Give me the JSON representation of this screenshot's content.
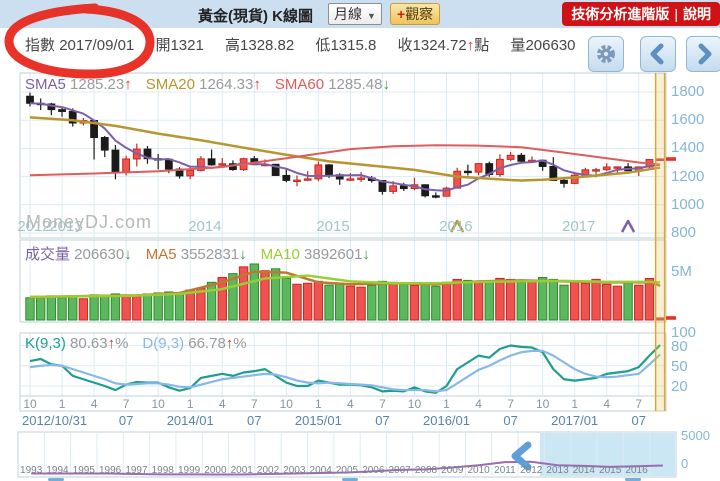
{
  "top_bar": {
    "title": "黃金(現貨) K線圖",
    "period_select": {
      "value": "月線",
      "caret": "▼"
    },
    "watch_button": {
      "plus": "+",
      "label": "觀察"
    },
    "advanced_label": "技術分析進階版",
    "separator": "|",
    "help_label": "說明"
  },
  "info_bar": {
    "index_label": "指數",
    "date": "2017/09/01",
    "open_label": "開",
    "open": "1321",
    "high_label": "高",
    "high": "1328.82",
    "low_label": "低",
    "low": "1315.8",
    "close_label": "收",
    "close": "1324.72",
    "close_arrow": "↑",
    "point_label": "點",
    "volume_label": "量",
    "volume": "206630"
  },
  "watermark": "MoneyDJ.com",
  "colors": {
    "up": "#e8312a",
    "down": "#2e9e3e",
    "candle_up_fill": "#ef5350",
    "candle_up_stroke": "#c8281e",
    "candle_down_fill": "#1b1b1b",
    "candle_down_stroke": "#1b1b1b",
    "vol_up_fill": "#ef5350",
    "vol_up_stroke": "#c8281e",
    "vol_down_fill": "#5cb85c",
    "vol_down_stroke": "#2e8b2e",
    "sma5": "#7d5fa8",
    "sma20": "#b8962e",
    "sma60": "#e05c5c",
    "vol_ma5": "#c07830",
    "vol_ma10": "#9acd32",
    "k_line": "#1d9e8f",
    "d_line": "#88b8e8",
    "grid": "#dcebf3",
    "panel_border": "#bcd0db",
    "cursor": "#d9a92e",
    "nav_line": "#9b6bb3",
    "nav_selection": "rgba(141,202,230,0.45)",
    "nav_handle": "#5d9fd6",
    "annotation_red": "#e8281e"
  },
  "main_chart": {
    "legend": [
      {
        "label": "SMA5",
        "value": "1285.23",
        "arrow": "↑",
        "label_color": "#7d5fa8"
      },
      {
        "label": "SMA20",
        "value": "1264.33",
        "arrow": "↑",
        "label_color": "#b8962e"
      },
      {
        "label": "SMA60",
        "value": "1285.48",
        "arrow": "↓",
        "label_color": "#e05c5c"
      }
    ],
    "y_ticks": [
      "1800",
      "1600",
      "1400",
      "1200",
      "1000",
      "800"
    ],
    "year_labels": [
      {
        "text": "2012",
        "idx": 0
      },
      {
        "text": "2013",
        "idx": 3
      },
      {
        "text": "2014",
        "idx": 16
      },
      {
        "text": "2015",
        "idx": 28
      },
      {
        "text": "2016",
        "idx": 39.5
      },
      {
        "text": "2017",
        "idx": 51
      }
    ],
    "candles_columns": [
      "month",
      "open",
      "high",
      "low",
      "close",
      "volume_millions",
      "k",
      "d"
    ],
    "candles": [
      [
        "2012/10",
        1770,
        1796,
        1698,
        1720,
        2.3,
        57,
        48
      ],
      [
        "2012/11",
        1720,
        1754,
        1672,
        1715,
        2.4,
        60,
        50
      ],
      [
        "2012/12",
        1715,
        1723,
        1636,
        1675,
        2.5,
        52,
        51
      ],
      [
        "2013/01",
        1675,
        1696,
        1625,
        1662,
        2.3,
        50,
        50
      ],
      [
        "2013/02",
        1662,
        1684,
        1555,
        1580,
        2.4,
        35,
        45
      ],
      [
        "2013/03",
        1580,
        1616,
        1563,
        1598,
        2.2,
        30,
        40
      ],
      [
        "2013/04",
        1598,
        1605,
        1321,
        1477,
        2.6,
        25,
        35
      ],
      [
        "2013/05",
        1477,
        1488,
        1338,
        1388,
        2.5,
        20,
        30
      ],
      [
        "2013/06",
        1388,
        1424,
        1180,
        1234,
        2.7,
        14,
        24
      ],
      [
        "2013/07",
        1234,
        1348,
        1208,
        1325,
        2.6,
        22,
        22
      ],
      [
        "2013/08",
        1325,
        1434,
        1272,
        1395,
        2.5,
        26,
        23
      ],
      [
        "2013/09",
        1395,
        1417,
        1291,
        1327,
        2.7,
        25,
        24
      ],
      [
        "2013/10",
        1327,
        1361,
        1251,
        1323,
        2.8,
        25,
        24
      ],
      [
        "2013/11",
        1323,
        1326,
        1225,
        1253,
        2.9,
        18,
        22
      ],
      [
        "2013/12",
        1253,
        1267,
        1186,
        1205,
        2.8,
        13,
        19
      ],
      [
        "2014/01",
        1205,
        1278,
        1182,
        1244,
        3.1,
        17,
        18
      ],
      [
        "2014/02",
        1244,
        1345,
        1237,
        1326,
        3.3,
        32,
        22
      ],
      [
        "2014/03",
        1326,
        1392,
        1277,
        1283,
        3.9,
        35,
        26
      ],
      [
        "2014/04",
        1283,
        1331,
        1268,
        1291,
        4.4,
        38,
        30
      ],
      [
        "2014/05",
        1291,
        1315,
        1241,
        1250,
        4.8,
        35,
        32
      ],
      [
        "2014/06",
        1250,
        1334,
        1240,
        1327,
        5.5,
        40,
        34
      ],
      [
        "2014/07",
        1327,
        1346,
        1281,
        1285,
        5.8,
        42,
        36
      ],
      [
        "2014/08",
        1285,
        1322,
        1273,
        1287,
        5.1,
        45,
        38
      ],
      [
        "2014/09",
        1287,
        1290,
        1204,
        1208,
        5.3,
        35,
        37
      ],
      [
        "2014/10",
        1208,
        1256,
        1160,
        1173,
        4.3,
        25,
        33
      ],
      [
        "2014/11",
        1173,
        1208,
        1131,
        1175,
        3.7,
        20,
        28
      ],
      [
        "2014/12",
        1175,
        1239,
        1170,
        1184,
        3.8,
        20,
        25
      ],
      [
        "2015/01",
        1184,
        1307,
        1168,
        1283,
        4.0,
        28,
        24
      ],
      [
        "2015/02",
        1283,
        1288,
        1190,
        1213,
        3.6,
        25,
        25
      ],
      [
        "2015/03",
        1213,
        1223,
        1142,
        1183,
        3.8,
        22,
        24
      ],
      [
        "2015/04",
        1183,
        1225,
        1170,
        1184,
        3.5,
        22,
        23
      ],
      [
        "2015/05",
        1184,
        1232,
        1162,
        1190,
        3.4,
        21,
        22
      ],
      [
        "2015/06",
        1190,
        1205,
        1157,
        1172,
        3.6,
        18,
        21
      ],
      [
        "2015/07",
        1172,
        1175,
        1072,
        1095,
        4.0,
        12,
        18
      ],
      [
        "2015/08",
        1095,
        1168,
        1077,
        1134,
        3.9,
        13,
        15
      ],
      [
        "2015/09",
        1134,
        1156,
        1098,
        1115,
        3.7,
        12,
        14
      ],
      [
        "2015/10",
        1115,
        1192,
        1104,
        1142,
        3.6,
        18,
        14
      ],
      [
        "2015/11",
        1142,
        1146,
        1052,
        1064,
        3.8,
        12,
        14
      ],
      [
        "2015/12",
        1064,
        1088,
        1046,
        1061,
        3.5,
        10,
        12
      ],
      [
        "2016/01",
        1061,
        1128,
        1061,
        1118,
        3.9,
        20,
        14
      ],
      [
        "2016/02",
        1118,
        1263,
        1117,
        1238,
        4.2,
        45,
        24
      ],
      [
        "2016/03",
        1238,
        1285,
        1208,
        1232,
        4.1,
        55,
        34
      ],
      [
        "2016/04",
        1232,
        1296,
        1208,
        1292,
        3.9,
        65,
        44
      ],
      [
        "2016/05",
        1292,
        1306,
        1199,
        1215,
        4.0,
        62,
        50
      ],
      [
        "2016/06",
        1215,
        1358,
        1199,
        1322,
        4.3,
        75,
        58
      ],
      [
        "2016/07",
        1322,
        1375,
        1310,
        1351,
        4.2,
        80,
        65
      ],
      [
        "2016/08",
        1351,
        1367,
        1302,
        1309,
        3.9,
        78,
        70
      ],
      [
        "2016/09",
        1309,
        1344,
        1301,
        1316,
        4.1,
        77,
        72
      ],
      [
        "2016/10",
        1316,
        1322,
        1241,
        1272,
        4.4,
        70,
        72
      ],
      [
        "2016/11",
        1272,
        1338,
        1170,
        1173,
        4.2,
        45,
        65
      ],
      [
        "2016/12",
        1173,
        1188,
        1122,
        1152,
        3.6,
        30,
        55
      ],
      [
        "2017/01",
        1152,
        1220,
        1146,
        1210,
        4.0,
        28,
        45
      ],
      [
        "2017/02",
        1210,
        1263,
        1208,
        1248,
        3.8,
        30,
        38
      ],
      [
        "2017/03",
        1248,
        1261,
        1195,
        1249,
        4.2,
        32,
        34
      ],
      [
        "2017/04",
        1249,
        1295,
        1240,
        1268,
        3.7,
        38,
        33
      ],
      [
        "2017/05",
        1268,
        1273,
        1214,
        1269,
        3.5,
        40,
        34
      ],
      [
        "2017/06",
        1269,
        1296,
        1240,
        1242,
        3.9,
        42,
        36
      ],
      [
        "2017/07",
        1242,
        1270,
        1204,
        1269,
        3.6,
        48,
        38
      ],
      [
        "2017/08",
        1269,
        1325,
        1251,
        1321,
        4.3,
        65,
        52
      ],
      [
        "2017/09",
        1321,
        1328.82,
        1315.8,
        1324.72,
        0.21,
        80.63,
        66.78
      ]
    ],
    "sma20_keypoints": [
      [
        0,
        1620
      ],
      [
        4,
        1600
      ],
      [
        8,
        1560
      ],
      [
        12,
        1505
      ],
      [
        16,
        1458
      ],
      [
        20,
        1405
      ],
      [
        24,
        1355
      ],
      [
        28,
        1308
      ],
      [
        32,
        1278
      ],
      [
        36,
        1248
      ],
      [
        40,
        1200
      ],
      [
        44,
        1180
      ],
      [
        46,
        1172
      ],
      [
        48,
        1178
      ],
      [
        52,
        1200
      ],
      [
        56,
        1228
      ],
      [
        59,
        1264
      ]
    ],
    "sma60_keypoints": [
      [
        0,
        1210
      ],
      [
        6,
        1222
      ],
      [
        12,
        1238
      ],
      [
        18,
        1268
      ],
      [
        24,
        1330
      ],
      [
        30,
        1395
      ],
      [
        34,
        1415
      ],
      [
        38,
        1422
      ],
      [
        42,
        1420
      ],
      [
        46,
        1408
      ],
      [
        50,
        1370
      ],
      [
        54,
        1330
      ],
      [
        57,
        1300
      ],
      [
        59,
        1285
      ]
    ],
    "cross_markers": [
      {
        "color": "#b8962e",
        "idx": 40
      },
      {
        "color": "#7d5fa8",
        "idx": 56
      }
    ],
    "last_price": 1324.72
  },
  "volume_chart": {
    "legend": [
      {
        "label": "成交量",
        "value": "206630",
        "arrow": "↓",
        "label_color": "#7d5fa8"
      },
      {
        "label": "MA5",
        "value": "3552831",
        "arrow": "↓",
        "label_color": "#c07830"
      },
      {
        "label": "MA10",
        "value": "3892601",
        "arrow": "↓",
        "label_color": "#9acd32"
      }
    ],
    "y_tick": "5M",
    "ma5_keypoints": [
      [
        0,
        2.35
      ],
      [
        6,
        2.5
      ],
      [
        10,
        2.55
      ],
      [
        14,
        2.8
      ],
      [
        18,
        3.9
      ],
      [
        21,
        5.0
      ],
      [
        24,
        4.9
      ],
      [
        27,
        3.9
      ],
      [
        30,
        3.7
      ],
      [
        34,
        3.8
      ],
      [
        38,
        3.7
      ],
      [
        42,
        4.0
      ],
      [
        46,
        4.1
      ],
      [
        50,
        4.0
      ],
      [
        54,
        3.9
      ],
      [
        58,
        3.9
      ],
      [
        59,
        3.55
      ]
    ],
    "ma10_keypoints": [
      [
        0,
        2.4
      ],
      [
        4,
        2.45
      ],
      [
        9,
        2.5
      ],
      [
        14,
        2.7
      ],
      [
        18,
        3.2
      ],
      [
        22,
        4.3
      ],
      [
        26,
        4.6
      ],
      [
        30,
        4.0
      ],
      [
        34,
        3.8
      ],
      [
        38,
        3.8
      ],
      [
        42,
        3.95
      ],
      [
        46,
        4.0
      ],
      [
        50,
        4.05
      ],
      [
        54,
        3.95
      ],
      [
        58,
        3.95
      ],
      [
        59,
        3.89
      ]
    ]
  },
  "kd_chart": {
    "legend": [
      {
        "label": "K(9,3)",
        "value": "80.63",
        "arrow": "↑",
        "suffix": "%",
        "label_color": "#1d9e8f"
      },
      {
        "label": "D(9,3)",
        "value": "66.78",
        "arrow": "↑",
        "suffix": "%",
        "label_color": "#88b8e8"
      }
    ],
    "y_ticks": [
      "100",
      "80",
      "50",
      "20"
    ],
    "month_labels": [
      "10",
      "1",
      "4",
      "7",
      "10",
      "1",
      "4",
      "7",
      "10",
      "1",
      "4",
      "7",
      "10",
      "1",
      "4",
      "7",
      "10",
      "1",
      "4",
      "7"
    ]
  },
  "date_axis": [
    {
      "text": "2012/10/31",
      "idx": 0
    },
    {
      "text": "07",
      "idx": 9
    },
    {
      "text": "2014/01",
      "idx": 15
    },
    {
      "text": "07",
      "idx": 21
    },
    {
      "text": "2015/01",
      "idx": 27
    },
    {
      "text": "07",
      "idx": 33
    },
    {
      "text": "2016/01",
      "idx": 39
    },
    {
      "text": "07",
      "idx": 45
    },
    {
      "text": "2017/01",
      "idx": 51
    },
    {
      "text": "07",
      "idx": 57
    }
  ],
  "navigator": {
    "years": [
      "1993",
      "1994",
      "1995",
      "1996",
      "1997",
      "1998",
      "1999",
      "2000",
      "2001",
      "2002",
      "2003",
      "2004",
      "2005",
      "2006",
      "2007",
      "2008",
      "2009",
      "2010",
      "2011",
      "2012",
      "2013",
      "2014",
      "2015",
      "2016"
    ],
    "values": [
      385,
      383,
      386,
      388,
      331,
      294,
      290,
      279,
      272,
      332,
      385,
      438,
      495,
      632,
      790,
      852,
      1050,
      1300,
      1650,
      1700,
      1300,
      1230,
      1120,
      1200,
      1280
    ],
    "y_top": "5000",
    "y_bottom": "0"
  }
}
